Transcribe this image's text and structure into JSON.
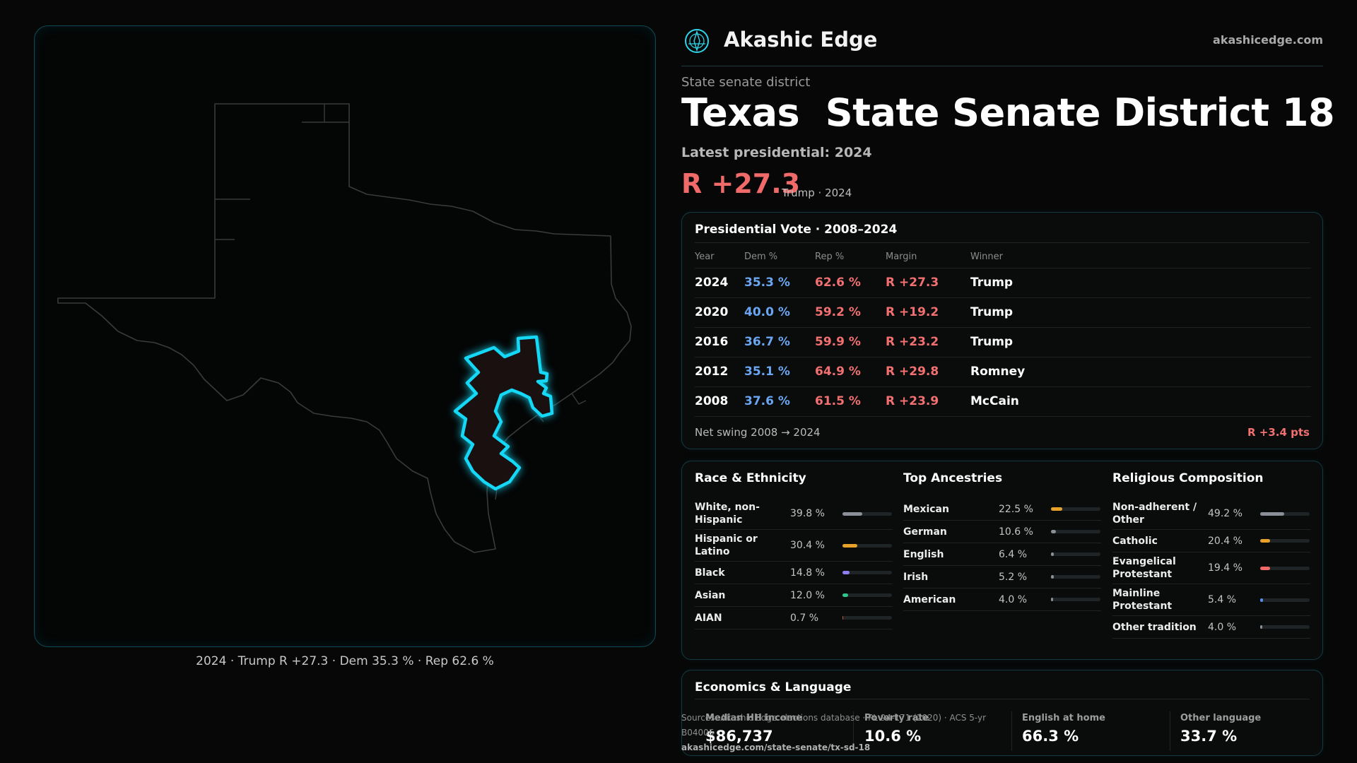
{
  "brand": {
    "name": "Akashic Edge",
    "url": "akashicedge.com",
    "icon": "compass-logo-icon",
    "accent": "#2fd3e8"
  },
  "header": {
    "kicker": "State senate district",
    "title": "Texas  State Senate District 18",
    "latest_label": "Latest presidential: 2024",
    "latest_margin": "R +27.3",
    "latest_sub": "Trump · 2024"
  },
  "map": {
    "caption": "2024 · Trump R +27.3 · Dem 35.3 % · Rep 62.6 %",
    "highlight_color": "#14d8f5"
  },
  "presidential": {
    "title": "Presidential Vote · 2008–2024",
    "columns": [
      "Year",
      "Dem %",
      "Rep %",
      "Margin",
      "Winner"
    ],
    "rows": [
      {
        "year": "2024",
        "dem": "35.3 %",
        "rep": "62.6 %",
        "margin": "R +27.3",
        "winner": "Trump"
      },
      {
        "year": "2020",
        "dem": "40.0 %",
        "rep": "59.2 %",
        "margin": "R +19.2",
        "winner": "Trump"
      },
      {
        "year": "2016",
        "dem": "36.7 %",
        "rep": "59.9 %",
        "margin": "R +23.2",
        "winner": "Trump"
      },
      {
        "year": "2012",
        "dem": "35.1 %",
        "rep": "64.9 %",
        "margin": "R +29.8",
        "winner": "Romney"
      },
      {
        "year": "2008",
        "dem": "37.6 %",
        "rep": "61.5 %",
        "margin": "R +23.9",
        "winner": "McCain"
      }
    ],
    "swing_label": "Net swing 2008 → 2024",
    "swing_value": "R +3.4 pts",
    "colors": {
      "dem": "#6aa6f2",
      "rep": "#f27070"
    }
  },
  "race": {
    "title": "Race & Ethnicity",
    "items": [
      {
        "label": "White, non-Hispanic",
        "pct": "39.8 %",
        "value": 0.398,
        "color": "#8a8f98"
      },
      {
        "label": "Hispanic or Latino",
        "pct": "30.4 %",
        "value": 0.304,
        "color": "#e8a22a"
      },
      {
        "label": "Black",
        "pct": "14.8 %",
        "value": 0.148,
        "color": "#8f7cf0"
      },
      {
        "label": "Asian",
        "pct": "12.0 %",
        "value": 0.12,
        "color": "#31c48d"
      },
      {
        "label": "AIAN",
        "pct": "0.7 %",
        "value": 0.007,
        "color": "#c0562f"
      }
    ]
  },
  "ancestry": {
    "title": "Top Ancestries",
    "items": [
      {
        "label": "Mexican",
        "pct": "22.5 %",
        "value": 0.225,
        "color": "#e8a22a"
      },
      {
        "label": "German",
        "pct": "10.6 %",
        "value": 0.106,
        "color": "#8a8f98"
      },
      {
        "label": "English",
        "pct": "6.4 %",
        "value": 0.064,
        "color": "#8a8f98"
      },
      {
        "label": "Irish",
        "pct": "5.2 %",
        "value": 0.052,
        "color": "#8a8f98"
      },
      {
        "label": "American",
        "pct": "4.0 %",
        "value": 0.04,
        "color": "#8a8f98"
      }
    ]
  },
  "religion": {
    "title": "Religious Composition",
    "items": [
      {
        "label": "Non-adherent / Other",
        "pct": "49.2 %",
        "value": 0.492,
        "color": "#8a8f98"
      },
      {
        "label": "Catholic",
        "pct": "20.4 %",
        "value": 0.204,
        "color": "#e8a22a"
      },
      {
        "label": "Evangelical Protestant",
        "pct": "19.4 %",
        "value": 0.194,
        "color": "#f06a6a"
      },
      {
        "label": "Mainline Protestant",
        "pct": "5.4 %",
        "value": 0.054,
        "color": "#5b8df0"
      },
      {
        "label": "Other tradition",
        "pct": "4.0 %",
        "value": 0.04,
        "color": "#8a8f98"
      }
    ]
  },
  "economics": {
    "title": "Economics & Language",
    "stats": [
      {
        "label": "Median HH income",
        "value": "$86,737"
      },
      {
        "label": "Poverty rate",
        "value": "10.6 %"
      },
      {
        "label": "English at home",
        "value": "66.3 %"
      },
      {
        "label": "Other language",
        "value": "33.7 %"
      }
    ]
  },
  "sources": {
    "text": "Sources: Akashic Edge elections database · PL 94-171 (2020) · ACS 5-yr B04006",
    "url": "akashicedge.com/state-senate/tx-sd-18"
  }
}
